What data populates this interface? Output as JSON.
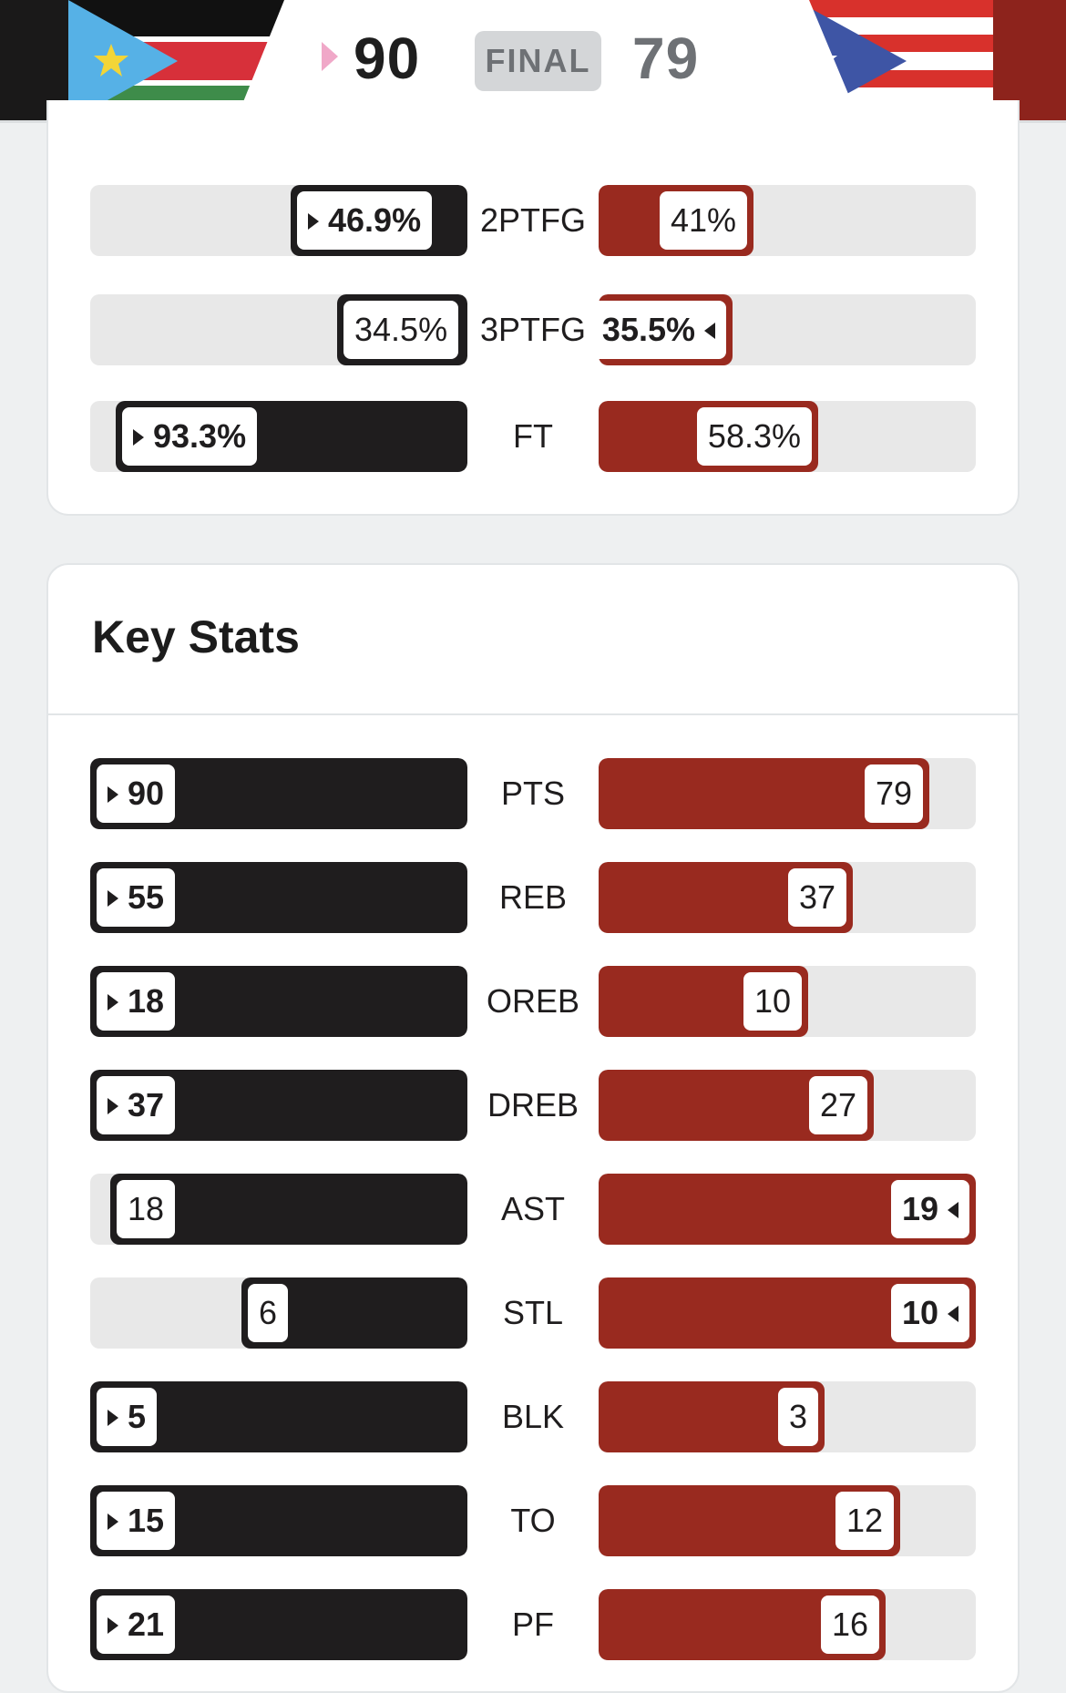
{
  "scoreboard": {
    "home_score": "90",
    "status": "FINAL",
    "away_score": "79",
    "home_flag": "south-sudan-flag",
    "away_flag": "puerto-rico-flag"
  },
  "colors": {
    "home": "#1f1d1e",
    "away": "#992a1f",
    "track": "#e8e8e8"
  },
  "shooting": [
    {
      "label_line1": "2PT",
      "label_line2": "FG",
      "home": "46.9%",
      "away": "41%",
      "home_frac": 0.469,
      "away_frac": 0.41,
      "winner": "home"
    },
    {
      "label_line1": "3PT",
      "label_line2": "FG",
      "home": "34.5%",
      "away": "35.5%",
      "home_frac": 0.345,
      "away_frac": 0.355,
      "winner": "away"
    },
    {
      "label_line1": "FT",
      "label_line2": "",
      "home": "93.3%",
      "away": "58.3%",
      "home_frac": 0.933,
      "away_frac": 0.583,
      "winner": "home"
    }
  ],
  "key_stats": {
    "title": "Key Stats",
    "rows": [
      {
        "label": "PTS",
        "home": "90",
        "away": "79",
        "winner": "home"
      },
      {
        "label": "REB",
        "home": "55",
        "away": "37",
        "winner": "home"
      },
      {
        "label": "OREB",
        "home": "18",
        "away": "10",
        "winner": "home"
      },
      {
        "label": "DREB",
        "home": "37",
        "away": "27",
        "winner": "home"
      },
      {
        "label": "AST",
        "home": "18",
        "away": "19",
        "winner": "away"
      },
      {
        "label": "STL",
        "home": "6",
        "away": "10",
        "winner": "away"
      },
      {
        "label": "BLK",
        "home": "5",
        "away": "3",
        "winner": "home"
      },
      {
        "label": "TO",
        "home": "15",
        "away": "12",
        "winner": "home"
      },
      {
        "label": "PF",
        "home": "21",
        "away": "16",
        "winner": "home"
      }
    ]
  }
}
